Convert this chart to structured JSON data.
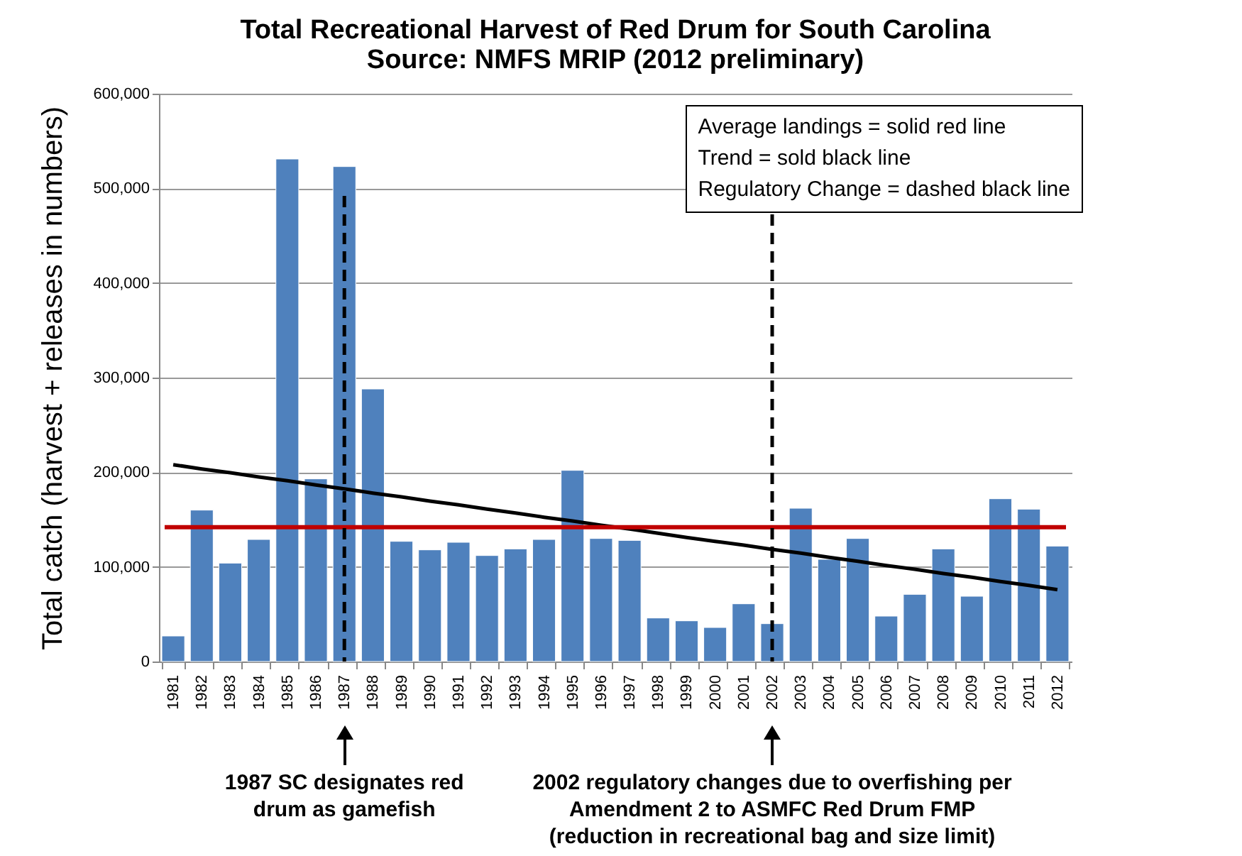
{
  "chart_data": {
    "type": "bar",
    "title": "Total Recreational Harvest of Red Drum for South Carolina",
    "subtitle": "Source: NMFS MRIP (2012 preliminary)",
    "ylabel": "Total catch (harvest + releases  in numbers)",
    "categories": [
      "1981",
      "1982",
      "1983",
      "1984",
      "1985",
      "1986",
      "1987",
      "1988",
      "1989",
      "1990",
      "1991",
      "1992",
      "1993",
      "1994",
      "1995",
      "1996",
      "1997",
      "1998",
      "1999",
      "2000",
      "2001",
      "2002",
      "2003",
      "2004",
      "2005",
      "2006",
      "2007",
      "2008",
      "2009",
      "2010",
      "2011",
      "2012"
    ],
    "series": [
      {
        "color": "#4f81bd",
        "values": [
          27000,
          160000,
          104000,
          129000,
          531000,
          193000,
          523000,
          288000,
          127000,
          118000,
          126000,
          112000,
          119000,
          129000,
          202000,
          130000,
          128000,
          46000,
          43000,
          36000,
          61000,
          40000,
          162000,
          108000,
          130000,
          48000,
          71000,
          119000,
          69000,
          172000,
          161000,
          122000
        ]
      },
      {
        "type": "line",
        "color": "#000000",
        "values": [
          208000,
          203500,
          199500,
          195000,
          191000,
          186500,
          182500,
          178000,
          174000,
          169500,
          165500,
          161000,
          157000,
          152500,
          148500,
          144000,
          140000,
          135500,
          131000,
          127000,
          123000,
          118500,
          114500,
          110000,
          106000,
          101500,
          97500,
          93000,
          89000,
          84500,
          80500,
          76000
        ]
      }
    ],
    "ylim": [
      0,
      600000
    ],
    "yticks": [
      0,
      {
        "value": 100000,
        "label": "100,000"
      },
      {
        "value": 200000,
        "label": "200,000"
      },
      {
        "value": 300000,
        "label": "300,000"
      },
      {
        "value": 400000,
        "label": "400,000"
      },
      {
        "value": 500000,
        "label": "500,000"
      },
      {
        "value": 600000,
        "label": "600,000"
      }
    ],
    "grid": "y",
    "ref_lines": [
      {
        "axis": "y",
        "value": 142000,
        "color": "#c00000",
        "line_style": "solid"
      },
      {
        "axis": "x",
        "value": "1987",
        "color": "#000000",
        "line_style": "dashed"
      },
      {
        "axis": "x",
        "value": "2002",
        "color": "#000000",
        "line_style": "dashed"
      }
    ],
    "annotations": [
      "Average landings = solid red line",
      "Trend = sold black line",
      "Regulatory Change = dashed black line",
      "1987 SC designates red drum as gamefish",
      "2002 regulatory changes due to overfishing per Amendment 2 to ASMFC  Red Drum FMP (reduction in recreational bag and size limit)"
    ]
  }
}
